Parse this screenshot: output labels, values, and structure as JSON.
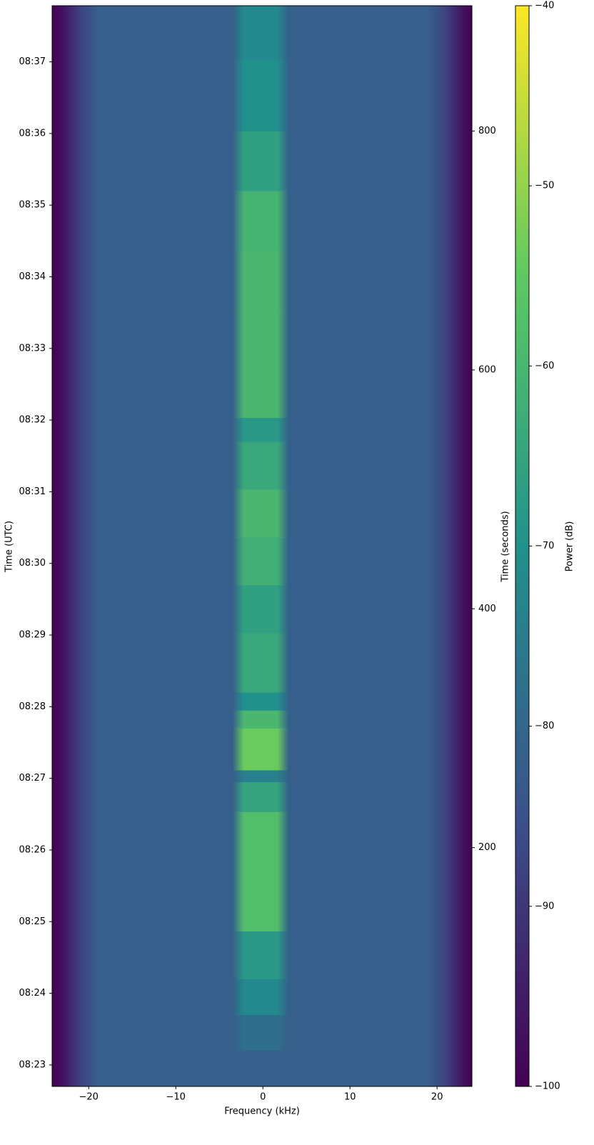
{
  "chart_data": {
    "type": "spectrogram",
    "x_label": "Frequency (kHz)",
    "y_label": "Time (UTC)",
    "y2_label": "Time (seconds)",
    "colorbar_label": "Power (dB)",
    "colormap": [
      "#440154",
      "#3b528b",
      "#21918c",
      "#5ec962",
      "#fde725"
    ],
    "xlim": [
      -24.2,
      24
    ],
    "xticks": [
      {
        "value": -20,
        "label": "−20"
      },
      {
        "value": -10,
        "label": "−10"
      },
      0,
      10,
      20
    ],
    "ylim": [
      0,
      905
    ],
    "yticks": [
      {
        "value": 18,
        "label": "08:23"
      },
      {
        "value": 78,
        "label": "08:24"
      },
      {
        "value": 138,
        "label": "08:25"
      },
      {
        "value": 198,
        "label": "08:26"
      },
      {
        "value": 258,
        "label": "08:27"
      },
      {
        "value": 318,
        "label": "08:28"
      },
      {
        "value": 378,
        "label": "08:29"
      },
      {
        "value": 438,
        "label": "08:30"
      },
      {
        "value": 498,
        "label": "08:31"
      },
      {
        "value": 558,
        "label": "08:32"
      },
      {
        "value": 618,
        "label": "08:33"
      },
      {
        "value": 678,
        "label": "08:34"
      },
      {
        "value": 738,
        "label": "08:35"
      },
      {
        "value": 798,
        "label": "08:36"
      },
      {
        "value": 858,
        "label": "08:37"
      }
    ],
    "y2lim": [
      0,
      905
    ],
    "y2ticks": [
      200,
      400,
      600,
      800
    ],
    "clim": [
      -100,
      -40
    ],
    "cticks": [
      {
        "value": -40,
        "label": "−40"
      },
      {
        "value": -50,
        "label": "−50"
      },
      {
        "value": -60,
        "label": "−60"
      },
      {
        "value": -70,
        "label": "−70"
      },
      {
        "value": -80,
        "label": "−80"
      },
      {
        "value": -90,
        "label": "−90"
      },
      {
        "value": -100,
        "label": "−100"
      }
    ],
    "noise_floor": {
      "freq": [
        -24.2,
        -23,
        -21,
        -19,
        19,
        21,
        23,
        24
      ],
      "values": [
        -100,
        -97,
        -88,
        -82,
        -82,
        -88,
        -97,
        -100
      ]
    },
    "signal_band": [
      -3,
      2.5
    ],
    "signal": {
      "time_bins": [
        30,
        60,
        90,
        130,
        230,
        255,
        265,
        300,
        315,
        330,
        380,
        420,
        460,
        500,
        540,
        560,
        650,
        700,
        750,
        800,
        860,
        905
      ],
      "values": [
        -78,
        -72,
        -68,
        -58,
        -65,
        -74,
        -54,
        -60,
        -70,
        -64,
        -66,
        -62,
        -60,
        -64,
        -68,
        -60,
        -60,
        -61,
        -66,
        -70,
        -72
      ]
    }
  }
}
